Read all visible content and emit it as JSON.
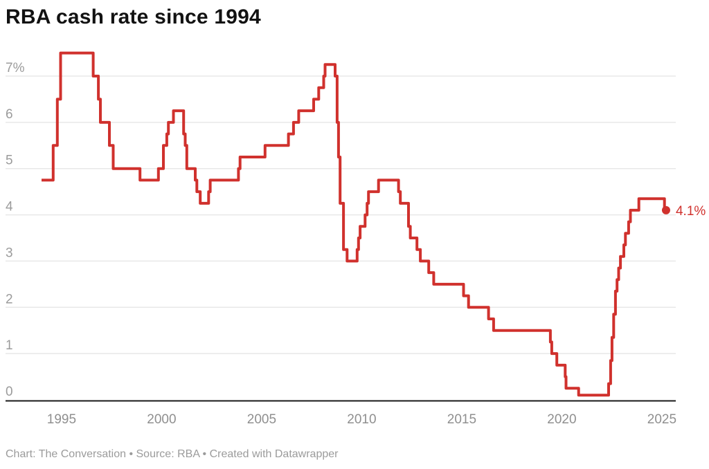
{
  "title": "RBA cash rate since 1994",
  "footer": "Chart: The Conversation • Source: RBA • Created with Datawrapper",
  "colors": {
    "line": "#d0312d",
    "grid": "#e8e8e8",
    "axis_line": "#1a1a1a",
    "y_tick_text": "#9b9b9b",
    "x_tick_text": "#8f8f8f",
    "title_text": "#121212",
    "footer_text": "#9b9b9b",
    "annotation_text": "#d0312d"
  },
  "chart_data": {
    "type": "line",
    "subtype": "step",
    "title": "RBA cash rate since 1994",
    "unit": "%",
    "xlabel": "",
    "ylabel": "",
    "ylim": [
      0,
      7.5
    ],
    "x_range_years": [
      1994.0,
      2025.2
    ],
    "grid": "horizontal",
    "legend": "none",
    "x_ticks": [
      1995,
      2000,
      2005,
      2010,
      2015,
      2020,
      2025
    ],
    "y_ticks": [
      {
        "value": 7,
        "label": "7%"
      },
      {
        "value": 6,
        "label": "6"
      },
      {
        "value": 5,
        "label": "5"
      },
      {
        "value": 4,
        "label": "4"
      },
      {
        "value": 3,
        "label": "3"
      },
      {
        "value": 2,
        "label": "2"
      },
      {
        "value": 1,
        "label": "1"
      },
      {
        "value": 0,
        "label": "0"
      }
    ],
    "series_name": "RBA cash rate",
    "points": [
      [
        1994.0,
        4.75
      ],
      [
        1994.58,
        5.5
      ],
      [
        1994.79,
        6.5
      ],
      [
        1994.95,
        7.5
      ],
      [
        1996.58,
        7.0
      ],
      [
        1996.84,
        6.5
      ],
      [
        1996.94,
        6.0
      ],
      [
        1997.39,
        5.5
      ],
      [
        1997.58,
        5.0
      ],
      [
        1998.92,
        4.75
      ],
      [
        1999.84,
        5.0
      ],
      [
        2000.09,
        5.5
      ],
      [
        2000.26,
        5.75
      ],
      [
        2000.34,
        6.0
      ],
      [
        2000.59,
        6.25
      ],
      [
        2001.1,
        5.75
      ],
      [
        2001.18,
        5.5
      ],
      [
        2001.26,
        5.0
      ],
      [
        2001.68,
        4.75
      ],
      [
        2001.76,
        4.5
      ],
      [
        2001.93,
        4.25
      ],
      [
        2002.35,
        4.5
      ],
      [
        2002.43,
        4.75
      ],
      [
        2003.84,
        5.0
      ],
      [
        2003.92,
        5.25
      ],
      [
        2005.17,
        5.5
      ],
      [
        2006.34,
        5.75
      ],
      [
        2006.59,
        6.0
      ],
      [
        2006.85,
        6.25
      ],
      [
        2007.6,
        6.5
      ],
      [
        2007.85,
        6.75
      ],
      [
        2008.1,
        7.0
      ],
      [
        2008.17,
        7.25
      ],
      [
        2008.67,
        7.0
      ],
      [
        2008.77,
        6.0
      ],
      [
        2008.84,
        5.25
      ],
      [
        2008.92,
        4.25
      ],
      [
        2009.09,
        3.25
      ],
      [
        2009.27,
        3.0
      ],
      [
        2009.77,
        3.25
      ],
      [
        2009.84,
        3.5
      ],
      [
        2009.92,
        3.75
      ],
      [
        2010.17,
        4.0
      ],
      [
        2010.27,
        4.25
      ],
      [
        2010.34,
        4.5
      ],
      [
        2010.84,
        4.75
      ],
      [
        2011.84,
        4.5
      ],
      [
        2011.93,
        4.25
      ],
      [
        2012.34,
        3.75
      ],
      [
        2012.43,
        3.5
      ],
      [
        2012.76,
        3.25
      ],
      [
        2012.93,
        3.0
      ],
      [
        2013.35,
        2.75
      ],
      [
        2013.6,
        2.5
      ],
      [
        2015.09,
        2.25
      ],
      [
        2015.34,
        2.0
      ],
      [
        2016.34,
        1.75
      ],
      [
        2016.59,
        1.5
      ],
      [
        2019.43,
        1.25
      ],
      [
        2019.5,
        1.0
      ],
      [
        2019.75,
        0.75
      ],
      [
        2020.17,
        0.5
      ],
      [
        2020.21,
        0.25
      ],
      [
        2020.84,
        0.1
      ],
      [
        2022.34,
        0.35
      ],
      [
        2022.44,
        0.85
      ],
      [
        2022.51,
        1.35
      ],
      [
        2022.59,
        1.85
      ],
      [
        2022.68,
        2.35
      ],
      [
        2022.76,
        2.6
      ],
      [
        2022.84,
        2.85
      ],
      [
        2022.93,
        3.1
      ],
      [
        2023.1,
        3.35
      ],
      [
        2023.18,
        3.6
      ],
      [
        2023.34,
        3.85
      ],
      [
        2023.43,
        4.1
      ],
      [
        2023.85,
        4.35
      ],
      [
        2025.13,
        4.1
      ]
    ],
    "end_x": 2025.21,
    "end_value": 4.1,
    "end_label": "4.1%"
  }
}
